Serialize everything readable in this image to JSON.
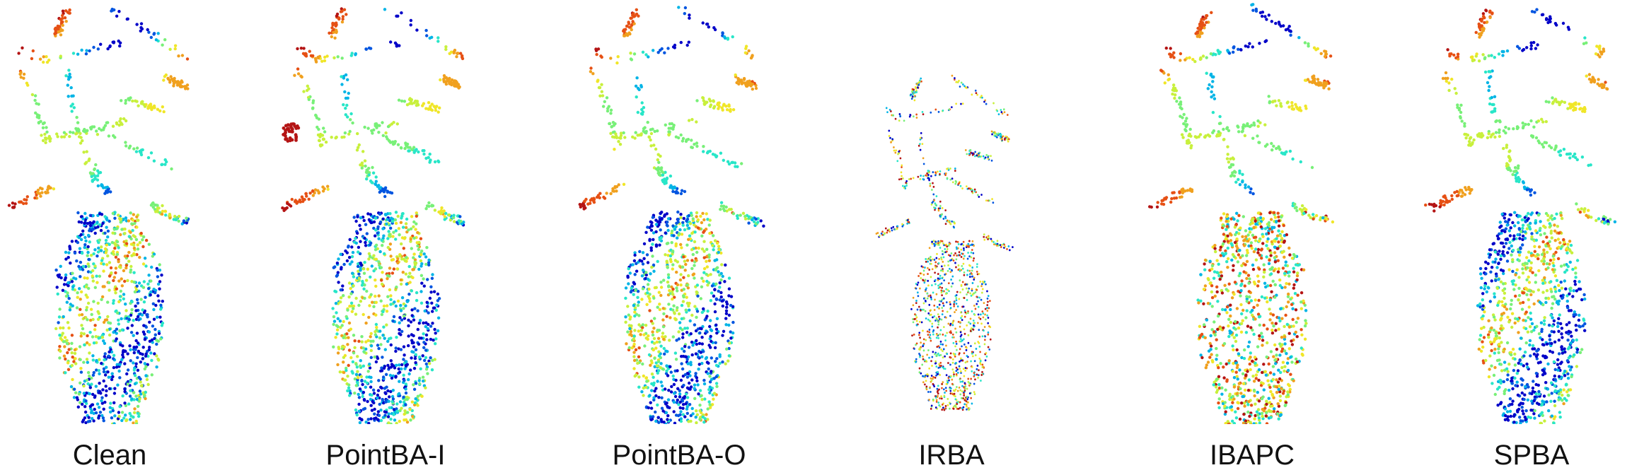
{
  "figure": {
    "panels": [
      {
        "id": "clean",
        "label": "Clean",
        "variant": "clean"
      },
      {
        "id": "pointba-i",
        "label": "PointBA-I",
        "variant": "pointba-i"
      },
      {
        "id": "pointba-o",
        "label": "PointBA-O",
        "variant": "pointba-o"
      },
      {
        "id": "irba",
        "label": "IRBA",
        "variant": "irba"
      },
      {
        "id": "ibapc",
        "label": "IBAPC",
        "variant": "ibapc"
      },
      {
        "id": "spba",
        "label": "SPBA",
        "variant": "spba"
      }
    ],
    "colormap": [
      "#0000c8",
      "#0055e0",
      "#00b4e6",
      "#28e6c8",
      "#78f078",
      "#c8f03c",
      "#f0e628",
      "#f0a01e",
      "#e65014",
      "#b41414"
    ]
  }
}
